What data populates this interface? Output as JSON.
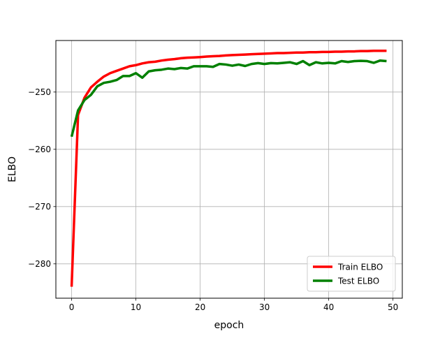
{
  "chart_data": {
    "type": "line",
    "xlabel": "epoch",
    "ylabel": "ELBO",
    "xlim": [
      -2.45,
      51.45
    ],
    "ylim": [
      -286,
      -241
    ],
    "xticks": [
      0,
      10,
      20,
      30,
      40,
      50
    ],
    "yticks": [
      -280,
      -270,
      -260,
      -250
    ],
    "xtick_labels": [
      "0",
      "10",
      "20",
      "30",
      "40",
      "50"
    ],
    "ytick_labels": [
      "−280",
      "−270",
      "−260",
      "−250"
    ],
    "grid": true,
    "legend_position": "lower-right",
    "x": [
      0,
      1,
      2,
      3,
      4,
      5,
      6,
      7,
      8,
      9,
      10,
      11,
      12,
      13,
      14,
      15,
      16,
      17,
      18,
      19,
      20,
      21,
      22,
      23,
      24,
      25,
      26,
      27,
      28,
      29,
      30,
      31,
      32,
      33,
      34,
      35,
      36,
      37,
      38,
      39,
      40,
      41,
      42,
      43,
      44,
      45,
      46,
      47,
      48,
      49
    ],
    "series": [
      {
        "name": "Train ELBO",
        "color": "#ff0000",
        "values": [
          -284.0,
          -254.0,
          -251.0,
          -249.2,
          -248.2,
          -247.3,
          -246.7,
          -246.3,
          -245.9,
          -245.5,
          -245.3,
          -245.0,
          -244.8,
          -244.7,
          -244.5,
          -244.35,
          -244.25,
          -244.1,
          -244.0,
          -243.95,
          -243.9,
          -243.8,
          -243.75,
          -243.7,
          -243.6,
          -243.55,
          -243.5,
          -243.45,
          -243.4,
          -243.35,
          -243.3,
          -243.25,
          -243.2,
          -243.2,
          -243.15,
          -243.1,
          -243.1,
          -243.05,
          -243.05,
          -243.0,
          -243.0,
          -242.95,
          -242.95,
          -242.9,
          -242.9,
          -242.85,
          -242.85,
          -242.8,
          -242.8,
          -242.8
        ]
      },
      {
        "name": "Test ELBO",
        "color": "#008000",
        "values": [
          -257.8,
          -253.2,
          -251.4,
          -250.5,
          -249.0,
          -248.4,
          -248.2,
          -247.9,
          -247.2,
          -247.2,
          -246.7,
          -247.5,
          -246.4,
          -246.2,
          -246.1,
          -245.9,
          -246.0,
          -245.8,
          -245.9,
          -245.5,
          -245.5,
          -245.5,
          -245.6,
          -245.1,
          -245.2,
          -245.4,
          -245.2,
          -245.45,
          -245.1,
          -244.95,
          -245.1,
          -244.95,
          -245.0,
          -244.9,
          -244.8,
          -245.1,
          -244.6,
          -245.3,
          -244.8,
          -245.0,
          -244.9,
          -245.0,
          -244.6,
          -244.75,
          -244.6,
          -244.55,
          -244.6,
          -244.9,
          -244.5,
          -244.6
        ]
      }
    ]
  }
}
